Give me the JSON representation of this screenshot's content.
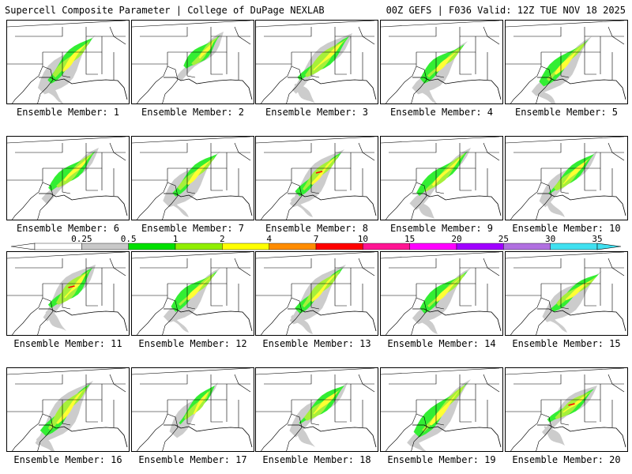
{
  "header": {
    "left": "Supercell Composite Parameter | College of DuPage NEXLAB",
    "right": "00Z GEFS | F036 Valid: 12Z TUE NOV 18 2025"
  },
  "member_prefix": "Ensemble Member: ",
  "members": [
    {
      "id": "1"
    },
    {
      "id": "2"
    },
    {
      "id": "3"
    },
    {
      "id": "4"
    },
    {
      "id": "5"
    },
    {
      "id": "6"
    },
    {
      "id": "7"
    },
    {
      "id": "8"
    },
    {
      "id": "9"
    },
    {
      "id": "10"
    },
    {
      "id": "11"
    },
    {
      "id": "12"
    },
    {
      "id": "13"
    },
    {
      "id": "14"
    },
    {
      "id": "15"
    },
    {
      "id": "16"
    },
    {
      "id": "17"
    },
    {
      "id": "18"
    },
    {
      "id": "19"
    },
    {
      "id": "20"
    }
  ],
  "colorbar": {
    "levels": [
      "0.25",
      "0.5",
      "1",
      "2",
      "4",
      "7",
      "10",
      "15",
      "20",
      "25",
      "30",
      "35"
    ],
    "colors": [
      "#ffffff",
      "#c8c8c8",
      "#00e000",
      "#90ee00",
      "#ffff00",
      "#ff8c00",
      "#ff0000",
      "#ff1493",
      "#ff00ff",
      "#a000ff",
      "#b070e0",
      "#40e0f0"
    ]
  },
  "map_colors": {
    "gray": "#cccccc",
    "green": "#33ee33",
    "lime": "#a6f03a",
    "yellow": "#ffff33",
    "red": "#ff0000",
    "lines": "#000000"
  }
}
